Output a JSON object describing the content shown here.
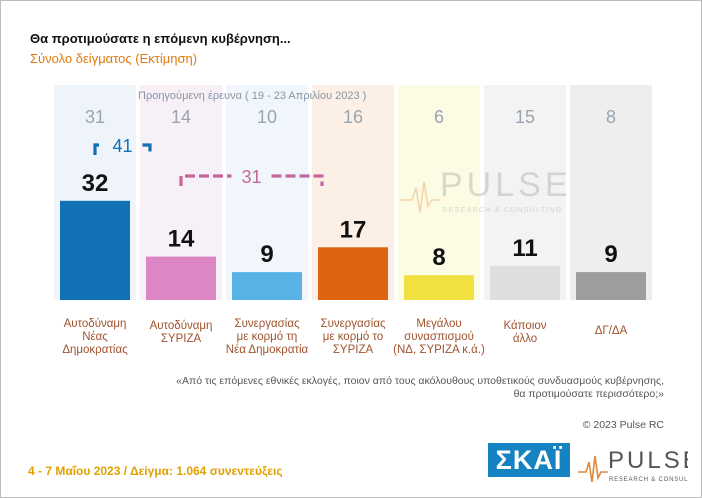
{
  "header": {
    "title": "Θα προτιμούσατε η επόμενη κυβέρνηση...",
    "subtitle": "Σύνολο δείγματος  (Εκτίμηση)",
    "previous_survey_label": "Προηγούμενη έρευνα  ( 19 - 23 Απριλίου  2023 )"
  },
  "chart_data": {
    "type": "bar",
    "categories": [
      "Αυτοδύναμη Νέας Δημοκρατίας",
      "Αυτοδύναμη ΣΥΡΙΖΑ",
      "Συνεργασίας με κορμό τη Νέα Δημοκρατία",
      "Συνεργασίας με κορμό το ΣΥΡΙΖΑ",
      "Μεγάλου συνασπισμού (ΝΔ, ΣΥΡΙΖΑ κ.ά.)",
      "Κάποιον άλλο",
      "ΔΓ/ΔΑ"
    ],
    "category_lines": [
      [
        "Αυτοδύναμη",
        "Νέας",
        "Δημοκρατίας"
      ],
      [
        "Αυτοδύναμη",
        "ΣΥΡΙΖΑ"
      ],
      [
        "Συνεργασίας",
        "με κορμό τη",
        "Νέα Δημοκρατία"
      ],
      [
        "Συνεργασίας",
        "με κορμό το",
        "ΣΥΡΙΖΑ"
      ],
      [
        "Μεγάλου",
        "συνασπισμού",
        "(ΝΔ, ΣΥΡΙΖΑ κ.ά.)"
      ],
      [
        "Κάποιον",
        "άλλο"
      ],
      [
        "ΔΓ/ΔΑ"
      ]
    ],
    "series": [
      {
        "name": "Προηγούμενη έρευνα",
        "values": [
          31,
          14,
          10,
          16,
          6,
          15,
          8
        ]
      },
      {
        "values": [
          32,
          14,
          9,
          17,
          8,
          11,
          9
        ]
      }
    ],
    "bar_colors": [
      "#1171b5",
      "#dd86c6",
      "#58b2e6",
      "#dd6410",
      "#f0e040",
      "#dedede",
      "#9d9d9d"
    ],
    "bg_colors": [
      "#eef4fa",
      "#f7f0f6",
      "#f0f6fb",
      "#fcefe6",
      "#fcfbe4",
      "#f3f3f3",
      "#eeeeee"
    ],
    "brackets": [
      {
        "label": "41",
        "from": 0,
        "to": 1,
        "color": "#1171b5"
      },
      {
        "label": "31",
        "from": 1,
        "to": 3,
        "color": "#c7659d"
      }
    ],
    "ylim": [
      0,
      100
    ]
  },
  "footer": {
    "question": "«Από τις επόμενες εθνικές εκλογές, ποιον από τους ακόλουθους υποθετικούς συνδυασμούς κυβέρνησης,",
    "question_line2": "θα προτιμούσατε περισσότερο;»",
    "copyright": "© 2023 Pulse RC",
    "fieldwork": "4 - 7  Μαΐου  2023  /  Δείγμα:  1.064 συνεντεύξεις",
    "skai_logo": "ΣΚΑΪ",
    "pulse_logo": "PULSE",
    "pulse_logo_sub": "RESEARCH & CONSULTING"
  }
}
